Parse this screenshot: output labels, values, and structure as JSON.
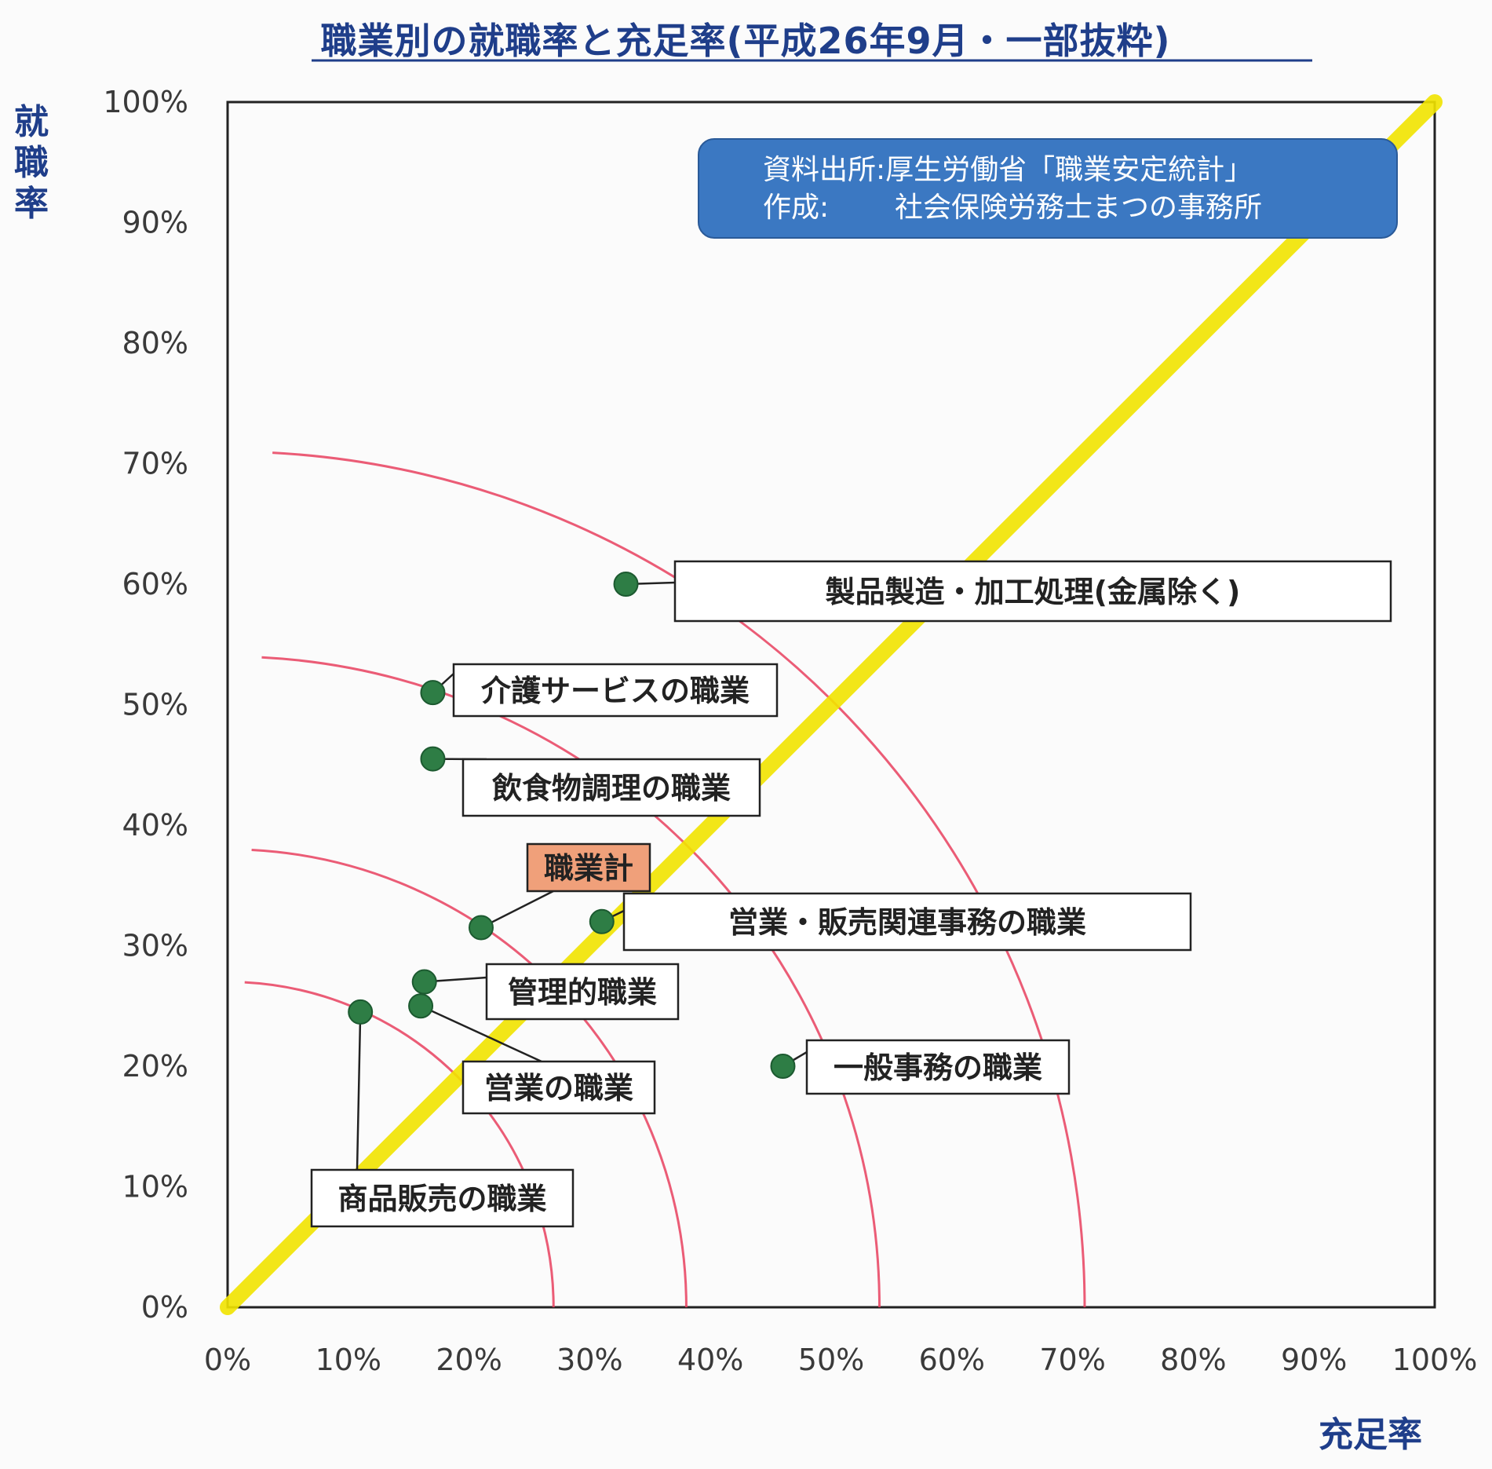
{
  "chart_data": {
    "type": "scatter",
    "title": "職業別の就職率と充足率(平成26年9月・一部抜粋)",
    "xlabel": "充足率",
    "ylabel": "就職率",
    "xlim": [
      0,
      100
    ],
    "ylim": [
      0,
      100
    ],
    "x_ticks": [
      "0%",
      "10%",
      "20%",
      "30%",
      "40%",
      "50%",
      "60%",
      "70%",
      "80%",
      "90%",
      "100%"
    ],
    "y_ticks": [
      "0%",
      "10%",
      "20%",
      "30%",
      "40%",
      "50%",
      "60%",
      "70%",
      "80%",
      "90%",
      "100%"
    ],
    "points": [
      {
        "label": "製品製造・加工処理(金属除く)",
        "x": 33,
        "y": 60
      },
      {
        "label": "介護サービスの職業",
        "x": 17,
        "y": 51
      },
      {
        "label": "飲食物調理の職業",
        "x": 17,
        "y": 45.5
      },
      {
        "label": "職業計",
        "x": 21,
        "y": 31.5,
        "highlight": true
      },
      {
        "label": "営業・販売関連事務の職業",
        "x": 31,
        "y": 32
      },
      {
        "label": "管理的職業",
        "x": 16.3,
        "y": 27
      },
      {
        "label": "営業の職業",
        "x": 16,
        "y": 25
      },
      {
        "label": "商品販売の職業",
        "x": 11,
        "y": 24.5
      },
      {
        "label": "一般事務の職業",
        "x": 46,
        "y": 20
      }
    ],
    "reference_line": {
      "from": [
        0,
        0
      ],
      "to": [
        100,
        100
      ],
      "color": "#f2e400"
    },
    "arcs_radius": [
      27,
      38,
      54,
      71
    ],
    "point_color": "#2e7d45",
    "arc_color": "#e8405e",
    "highlight_color": "#f0a07a",
    "grid": false,
    "source_box": {
      "line1": "資料出所:厚生労働省「職業安定統計」",
      "line2_label": "作成:",
      "line2_value": "社会保険労務士まつの事務所",
      "color": "#3b78c2"
    }
  }
}
